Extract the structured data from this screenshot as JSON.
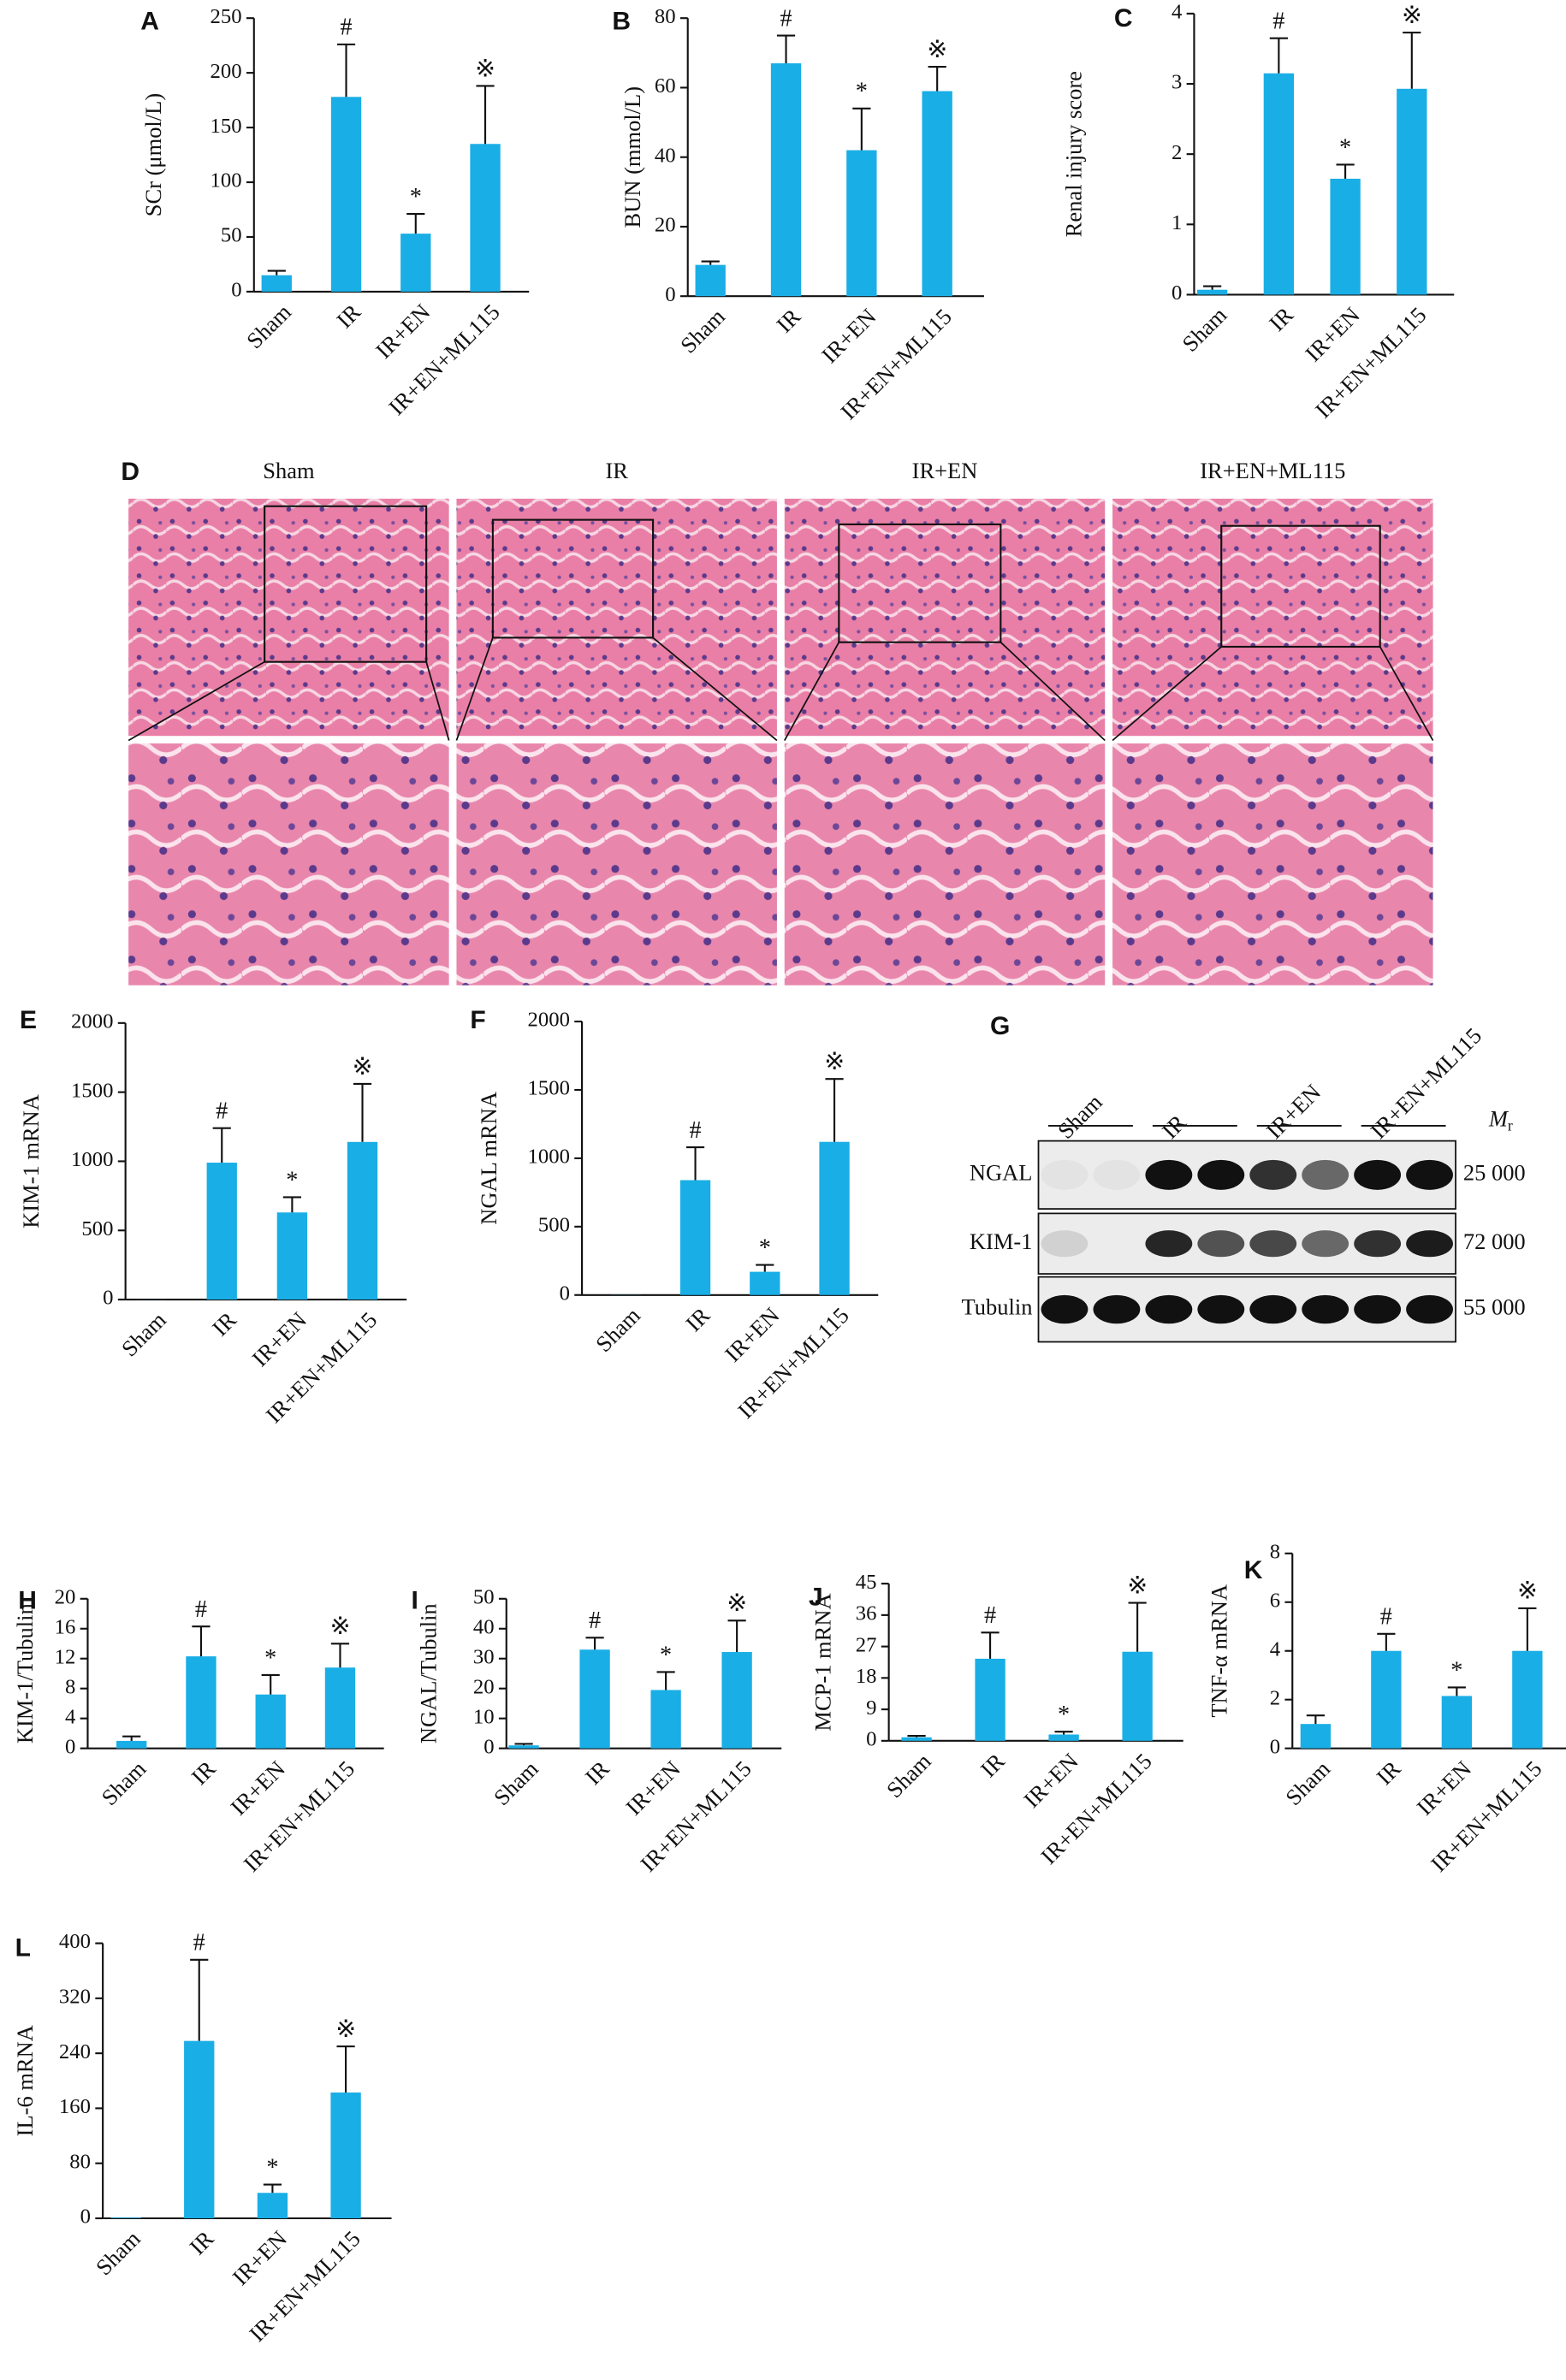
{
  "chart_data": [
    {
      "type": "bar",
      "label": "A",
      "ylabel": "SCr (μmol/L)",
      "categories": [
        "Sham",
        "IR",
        "IR+EN",
        "IR+EN+ML115"
      ],
      "values": [
        15,
        178,
        53,
        135
      ],
      "errors": [
        4,
        48,
        18,
        53
      ],
      "annotations": [
        null,
        "#",
        "*",
        "※"
      ],
      "color": "#1aaee6",
      "ylim": [
        0,
        250
      ],
      "yticks": [
        0,
        50,
        100,
        150,
        200,
        250
      ]
    },
    {
      "type": "bar",
      "label": "B",
      "ylabel": "BUN (mmol/L)",
      "categories": [
        "Sham",
        "IR",
        "IR+EN",
        "IR+EN+ML115"
      ],
      "values": [
        9,
        67,
        42,
        59
      ],
      "errors": [
        1,
        8,
        12,
        7
      ],
      "annotations": [
        null,
        "#",
        "*",
        "※"
      ],
      "color": "#1aaee6",
      "ylim": [
        0,
        80
      ],
      "yticks": [
        0,
        20,
        40,
        60,
        80
      ]
    },
    {
      "type": "bar",
      "label": "C",
      "ylabel": "Renal injury score",
      "categories": [
        "Sham",
        "IR",
        "IR+EN",
        "IR+EN+ML115"
      ],
      "values": [
        0.07,
        3.15,
        1.65,
        2.93
      ],
      "errors": [
        0.05,
        0.5,
        0.2,
        0.8
      ],
      "annotations": [
        null,
        "#",
        "*",
        "※"
      ],
      "color": "#1aaee6",
      "ylim": [
        0,
        4
      ],
      "yticks": [
        0,
        1,
        2,
        3,
        4
      ]
    },
    {
      "type": "bar",
      "label": "E",
      "ylabel": "KIM-1 mRNA",
      "categories": [
        "Sham",
        "IR",
        "IR+EN",
        "IR+EN+ML115"
      ],
      "values": [
        1,
        990,
        630,
        1140
      ],
      "errors": [
        0,
        250,
        110,
        420
      ],
      "annotations": [
        null,
        "#",
        "*",
        "※"
      ],
      "color": "#1aaee6",
      "ylim": [
        0,
        2000
      ],
      "yticks": [
        0,
        500,
        1000,
        1500,
        2000
      ]
    },
    {
      "type": "bar",
      "label": "F",
      "ylabel": "NGAL mRNA",
      "categories": [
        "Sham",
        "IR",
        "IR+EN",
        "IR+EN+ML115"
      ],
      "values": [
        1,
        840,
        170,
        1120
      ],
      "errors": [
        0,
        240,
        50,
        460
      ],
      "annotations": [
        null,
        "#",
        "*",
        "※"
      ],
      "color": "#1aaee6",
      "ylim": [
        0,
        2000
      ],
      "yticks": [
        0,
        500,
        1000,
        1500,
        2000
      ]
    },
    {
      "type": "bar",
      "label": "H",
      "ylabel": "KIM-1/Tubulin",
      "categories": [
        "Sham",
        "IR",
        "IR+EN",
        "IR+EN+ML115"
      ],
      "values": [
        1,
        12.3,
        7.2,
        10.8
      ],
      "errors": [
        0.6,
        4,
        2.6,
        3.2
      ],
      "annotations": [
        null,
        "#",
        "*",
        "※"
      ],
      "color": "#1aaee6",
      "ylim": [
        0,
        20
      ],
      "yticks": [
        0,
        4,
        8,
        12,
        16,
        20
      ]
    },
    {
      "type": "bar",
      "label": "I",
      "ylabel": "NGAL/Tubulin",
      "categories": [
        "Sham",
        "IR",
        "IR+EN",
        "IR+EN+ML115"
      ],
      "values": [
        1,
        33,
        19.5,
        32.2
      ],
      "errors": [
        0.5,
        4,
        6,
        10.5
      ],
      "annotations": [
        null,
        "#",
        "*",
        "※"
      ],
      "color": "#1aaee6",
      "ylim": [
        0,
        50
      ],
      "yticks": [
        0,
        10,
        20,
        30,
        40,
        50
      ]
    },
    {
      "type": "bar",
      "label": "J",
      "ylabel": "MCP-1 mRNA",
      "categories": [
        "Sham",
        "IR",
        "IR+EN",
        "IR+EN+ML115"
      ],
      "values": [
        1,
        23.5,
        1.8,
        25.5
      ],
      "errors": [
        0.4,
        7.5,
        0.8,
        14
      ],
      "annotations": [
        null,
        "#",
        "*",
        "※"
      ],
      "color": "#1aaee6",
      "ylim": [
        0,
        45
      ],
      "yticks": [
        0,
        9,
        18,
        27,
        36,
        45
      ]
    },
    {
      "type": "bar",
      "label": "K",
      "ylabel": "TNF-α mRNA",
      "categories": [
        "Sham",
        "IR",
        "IR+EN",
        "IR+EN+ML115"
      ],
      "values": [
        1,
        4,
        2.15,
        4
      ],
      "errors": [
        0.35,
        0.7,
        0.35,
        1.75
      ],
      "annotations": [
        null,
        "#",
        "*",
        "※"
      ],
      "color": "#1aaee6",
      "ylim": [
        0,
        8
      ],
      "yticks": [
        0,
        2,
        4,
        6,
        8
      ]
    },
    {
      "type": "bar",
      "label": "L",
      "ylabel": "IL-6 mRNA",
      "categories": [
        "Sham",
        "IR",
        "IR+EN",
        "IR+EN+ML115"
      ],
      "values": [
        1,
        258,
        37,
        183
      ],
      "errors": [
        0,
        118,
        12,
        67
      ],
      "annotations": [
        null,
        "#",
        "*",
        "※"
      ],
      "color": "#1aaee6",
      "ylim": [
        0,
        400
      ],
      "yticks": [
        0,
        80,
        160,
        240,
        320,
        400
      ]
    }
  ],
  "histology": {
    "label": "D",
    "columns": [
      "Sham",
      "IR",
      "IR+EN",
      "IR+EN+ML115"
    ]
  },
  "blot": {
    "label": "G",
    "groups": [
      "Sham",
      "IR",
      "IR+EN",
      "IR+EN+ML115"
    ],
    "rows": [
      "NGAL",
      "KIM-1",
      "Tubulin"
    ],
    "sizes": [
      "25 000",
      "72 000",
      "55 000"
    ],
    "mr": {
      "symbol": "M",
      "subscript": "r"
    }
  }
}
